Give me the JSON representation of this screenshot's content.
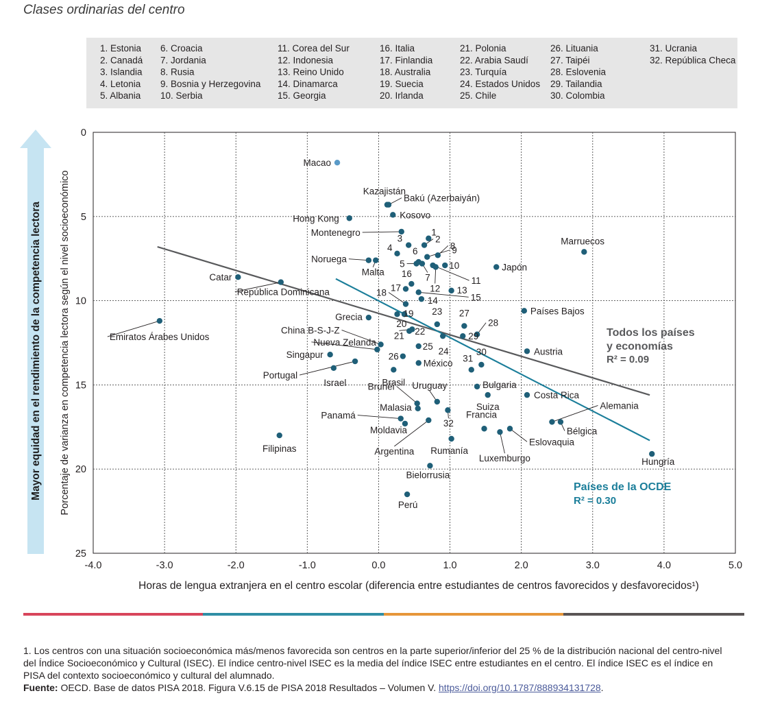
{
  "subtitle": "Clases ordinarias del centro",
  "colors": {
    "point": "#1f5f78",
    "point_highlight": "#5a9ac8",
    "trend_all": "#58595b",
    "trend_oecd": "#1b7e9a",
    "arrow": "#c6e4f2",
    "band": [
      "#d8455b",
      "#2f8ea5",
      "#e6963a",
      "#5a5555"
    ]
  },
  "legend_columns": [
    [
      "1. Estonia",
      "2. Canadá",
      "3. Islandia",
      "4. Letonia",
      "5. Albania"
    ],
    [
      "6. Croacia",
      "7. Jordania",
      "8. Rusia",
      "9. Bosnia y Herzegovina",
      "10. Serbia"
    ],
    [
      "11. Corea del Sur",
      "12. Indonesia",
      "13. Reino Unido",
      "14. Dinamarca",
      "15. Georgia"
    ],
    [
      "16. Italia",
      "17. Finlandia",
      "18. Australia",
      "19. Suecia",
      "20. Irlanda"
    ],
    [
      "21. Polonia",
      "22. Arabia Saudí",
      "23. Turquía",
      "24. Estados Unidos",
      "25. Chile"
    ],
    [
      "26. Lituania",
      "27. Taipéi",
      "28. Eslovenia",
      "29. Tailandia",
      "30. Colombia"
    ],
    [
      "31. Ucrania",
      "32. República Checa"
    ]
  ],
  "chart_data": {
    "type": "scatter",
    "xlabel": "Horas de lengua extranjera en el centro escolar (diferencia entre estudiantes de centros favorecidos y desfavorecidos¹)",
    "ylabel": "Porcentaje de varianza en competencia lectora según el nivel socioeconómico",
    "side_arrow_label": "Mayor equidad en el rendimiento de la competencia lectora",
    "xlim": [
      -4.0,
      5.0
    ],
    "ylim": [
      0,
      25
    ],
    "y_reversed": true,
    "grid": true,
    "x_ticks": [
      "-4.0",
      "-3.0",
      "-2.0",
      "-1.0",
      "0.0",
      "1.0",
      "2.0",
      "3.0",
      "4.0",
      "5.0"
    ],
    "y_ticks": [
      "0",
      "5",
      "10",
      "15",
      "20",
      "25"
    ],
    "trend_lines": [
      {
        "name": "Todos los países y economías",
        "r2": "R² = 0.09",
        "x": [
          -3.1,
          3.8
        ],
        "y": [
          6.8,
          15.6
        ]
      },
      {
        "name": "Países de la OCDE",
        "r2": "R² = 0.30",
        "x": [
          -0.6,
          3.8
        ],
        "y": [
          8.7,
          18.3
        ]
      }
    ],
    "points": [
      {
        "label": "Macao",
        "x": -0.58,
        "y": 1.8,
        "highlight": true
      },
      {
        "label": "Kazajistán",
        "x": 0.12,
        "y": 4.3
      },
      {
        "label": "Bakú (Azerbaiyán)",
        "x": 0.14,
        "y": 4.3
      },
      {
        "label": "Kosovo",
        "x": 0.2,
        "y": 4.9
      },
      {
        "label": "Hong Kong",
        "x": -0.41,
        "y": 5.1
      },
      {
        "label": "Montenegro",
        "x": 0.32,
        "y": 5.9
      },
      {
        "label": "1",
        "x": 0.7,
        "y": 6.3
      },
      {
        "label": "2",
        "x": 0.64,
        "y": 6.7
      },
      {
        "label": "3",
        "x": 0.42,
        "y": 6.7
      },
      {
        "label": "4",
        "x": 0.26,
        "y": 7.2
      },
      {
        "label": "6",
        "x": 0.56,
        "y": 7.7
      },
      {
        "label": "8",
        "x": 0.83,
        "y": 7.3
      },
      {
        "label": "9",
        "x": 0.68,
        "y": 7.4
      },
      {
        "label": "Noruega",
        "x": -0.14,
        "y": 7.6
      },
      {
        "label": "Malta",
        "x": -0.04,
        "y": 7.6
      },
      {
        "label": "5",
        "x": 0.53,
        "y": 7.8
      },
      {
        "label": "7",
        "x": 0.61,
        "y": 7.8
      },
      {
        "label": "10",
        "x": 0.93,
        "y": 7.9
      },
      {
        "label": "11",
        "x": 0.76,
        "y": 7.9
      },
      {
        "label": "12",
        "x": 0.8,
        "y": 8.0
      },
      {
        "label": "Japón",
        "x": 1.65,
        "y": 8.0
      },
      {
        "label": "Marruecos",
        "x": 2.88,
        "y": 7.1
      },
      {
        "label": "Catar",
        "x": -1.97,
        "y": 8.6
      },
      {
        "label": "República Dominicana",
        "x": -1.37,
        "y": 8.9
      },
      {
        "label": "16",
        "x": 0.46,
        "y": 9.0
      },
      {
        "label": "17",
        "x": 0.38,
        "y": 9.3
      },
      {
        "label": "13",
        "x": 1.02,
        "y": 9.4
      },
      {
        "label": "15",
        "x": 0.56,
        "y": 9.5
      },
      {
        "label": "14",
        "x": 0.6,
        "y": 9.9
      },
      {
        "label": "18",
        "x": 0.38,
        "y": 10.2
      },
      {
        "label": "19",
        "x": 0.26,
        "y": 10.8
      },
      {
        "label": "20",
        "x": 0.36,
        "y": 10.8
      },
      {
        "label": "Países Bajos",
        "x": 2.04,
        "y": 10.6
      },
      {
        "label": "Grecia",
        "x": -0.14,
        "y": 11.0
      },
      {
        "label": "Emiratos Árabes Unidos",
        "x": -3.07,
        "y": 11.2
      },
      {
        "label": "23",
        "x": 0.82,
        "y": 11.4
      },
      {
        "label": "27",
        "x": 1.2,
        "y": 11.5
      },
      {
        "label": "21",
        "x": 0.47,
        "y": 11.7
      },
      {
        "label": "22",
        "x": 0.43,
        "y": 11.8
      },
      {
        "label": "28",
        "x": 1.38,
        "y": 12.0
      },
      {
        "label": "24",
        "x": 0.9,
        "y": 12.1
      },
      {
        "label": "29",
        "x": 1.18,
        "y": 12.1
      },
      {
        "label": "China B-S-J-Z",
        "x": 0.03,
        "y": 12.6
      },
      {
        "label": "25",
        "x": 0.56,
        "y": 12.7
      },
      {
        "label": "Nueva Zelanda",
        "x": -0.02,
        "y": 12.9
      },
      {
        "label": "Austria",
        "x": 2.08,
        "y": 13.0
      },
      {
        "label": "Singapur",
        "x": -0.68,
        "y": 13.2
      },
      {
        "label": "26",
        "x": 0.34,
        "y": 13.3
      },
      {
        "label": "Portugal",
        "x": -0.33,
        "y": 13.6
      },
      {
        "label": "México",
        "x": 0.56,
        "y": 13.7
      },
      {
        "label": "30",
        "x": 1.44,
        "y": 13.8
      },
      {
        "label": "Israel",
        "x": -0.63,
        "y": 14.0
      },
      {
        "label": "Brasil",
        "x": 0.21,
        "y": 14.1
      },
      {
        "label": "31",
        "x": 1.3,
        "y": 14.1
      },
      {
        "label": "Bulgaria",
        "x": 1.38,
        "y": 15.1
      },
      {
        "label": "Suiza",
        "x": 1.53,
        "y": 15.6
      },
      {
        "label": "Costa Rica",
        "x": 2.08,
        "y": 15.6
      },
      {
        "label": "Uruguay",
        "x": 0.82,
        "y": 16.0
      },
      {
        "label": "Brunéi",
        "x": 0.54,
        "y": 16.1
      },
      {
        "label": "Malasia",
        "x": 0.55,
        "y": 16.4
      },
      {
        "label": "32",
        "x": 0.97,
        "y": 16.5
      },
      {
        "label": "Panamá",
        "x": 0.31,
        "y": 17.0
      },
      {
        "label": "Moldavia",
        "x": 0.37,
        "y": 17.3
      },
      {
        "label": "Argentina",
        "x": 0.7,
        "y": 17.1
      },
      {
        "label": "Alemania",
        "x": 2.43,
        "y": 17.2
      },
      {
        "label": "Bélgica",
        "x": 2.55,
        "y": 17.2
      },
      {
        "label": "Francia",
        "x": 1.48,
        "y": 17.6
      },
      {
        "label": "Eslovaquia",
        "x": 1.84,
        "y": 17.6
      },
      {
        "label": "Luxemburgo",
        "x": 1.7,
        "y": 17.8
      },
      {
        "label": "Filipinas",
        "x": -1.39,
        "y": 18.0
      },
      {
        "label": "Rumanía",
        "x": 1.02,
        "y": 18.2
      },
      {
        "label": "Hungría",
        "x": 3.83,
        "y": 19.1
      },
      {
        "label": "Bielorrusia",
        "x": 0.72,
        "y": 19.8
      },
      {
        "label": "Perú",
        "x": 0.4,
        "y": 21.5
      }
    ]
  },
  "footnote": "1. Los centros con una situación socioeconómica más/menos favorecida son centros en la parte superior/inferior del 25 % de la distribución nacional del centro-nivel del Índice Socioeconómico y Cultural (ISEC). El índice centro-nivel ISEC es la media del índice ISEC entre estudiantes en el centro. El índice ISEC es el índice en PISA del contexto socioeconómico y cultural del alumnado.",
  "source_label": "Fuente:",
  "source_text": " OECD. Base de datos PISA 2018. Figura V.6.15 de PISA 2018 Resultados – Volumen V. ",
  "source_link": "https://doi.org/10.1787/888934131728",
  "source_end": "."
}
